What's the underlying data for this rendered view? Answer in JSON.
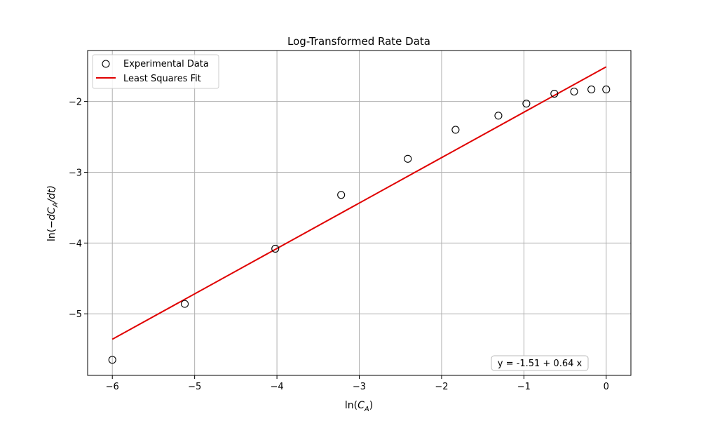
{
  "chart_data": {
    "type": "scatter",
    "title": "Log-Transformed Rate Data",
    "xlabel_base": "ln(",
    "xlabel_var": "C",
    "xlabel_sub": "A",
    "xlabel_close": ")",
    "ylabel_base": "ln(−",
    "ylabel_var": "dC",
    "ylabel_sub": "A",
    "ylabel_tail": "/dt)",
    "xlim": [
      -6.3,
      0.3
    ],
    "ylim": [
      -5.87,
      -1.28
    ],
    "xticks": [
      -6,
      -5,
      -4,
      -3,
      -2,
      -1,
      0
    ],
    "xtick_labels": [
      "−6",
      "−5",
      "−4",
      "−3",
      "−2",
      "−1",
      "0"
    ],
    "yticks": [
      -5,
      -4,
      -3,
      -2
    ],
    "ytick_labels": [
      "−5",
      "−4",
      "−3",
      "−2"
    ],
    "grid": true,
    "legend_position": "top-left",
    "series": [
      {
        "name": "Experimental Data",
        "kind": "scatter",
        "marker": "open-circle",
        "color": "#000000",
        "x": [
          -6.0,
          -5.12,
          -4.02,
          -3.22,
          -2.41,
          -1.83,
          -1.31,
          -0.97,
          -0.63,
          -0.39,
          -0.18,
          0.0
        ],
        "y": [
          -5.65,
          -4.86,
          -4.08,
          -3.32,
          -2.81,
          -2.4,
          -2.2,
          -2.03,
          -1.89,
          -1.86,
          -1.83,
          -1.83
        ]
      },
      {
        "name": "Least Squares Fit",
        "kind": "line",
        "color": "#e00000",
        "x": [
          -6.0,
          0.0
        ],
        "y": [
          -5.36,
          -1.51
        ]
      }
    ],
    "annotation": "y = -1.51 + 0.64 x"
  }
}
